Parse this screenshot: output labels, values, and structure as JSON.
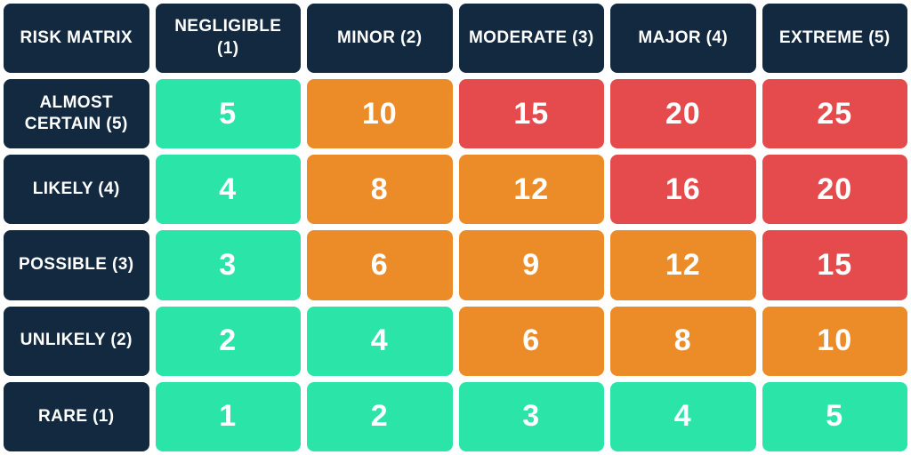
{
  "title": "RISK MATRIX",
  "matrix": {
    "corner_label": "RISK MATRIX",
    "column_headers": [
      "NEGLIGIBLE (1)",
      "MINOR (2)",
      "MODERATE (3)",
      "MAJOR (4)",
      "EXTREME (5)"
    ],
    "rows": [
      {
        "label": "ALMOST CERTAIN (5)",
        "cells": [
          {
            "value": "5",
            "level": "low"
          },
          {
            "value": "10",
            "level": "medium"
          },
          {
            "value": "15",
            "level": "high"
          },
          {
            "value": "20",
            "level": "high"
          },
          {
            "value": "25",
            "level": "high"
          }
        ]
      },
      {
        "label": "LIKELY (4)",
        "cells": [
          {
            "value": "4",
            "level": "low"
          },
          {
            "value": "8",
            "level": "medium"
          },
          {
            "value": "12",
            "level": "medium"
          },
          {
            "value": "16",
            "level": "high"
          },
          {
            "value": "20",
            "level": "high"
          }
        ]
      },
      {
        "label": "POSSIBLE (3)",
        "cells": [
          {
            "value": "3",
            "level": "low"
          },
          {
            "value": "6",
            "level": "medium"
          },
          {
            "value": "9",
            "level": "medium"
          },
          {
            "value": "12",
            "level": "medium"
          },
          {
            "value": "15",
            "level": "high"
          }
        ]
      },
      {
        "label": "UNLIKELY (2)",
        "cells": [
          {
            "value": "2",
            "level": "low"
          },
          {
            "value": "4",
            "level": "low"
          },
          {
            "value": "6",
            "level": "medium"
          },
          {
            "value": "8",
            "level": "medium"
          },
          {
            "value": "10",
            "level": "medium"
          }
        ]
      },
      {
        "label": "RARE (1)",
        "cells": [
          {
            "value": "1",
            "level": "low"
          },
          {
            "value": "2",
            "level": "low"
          },
          {
            "value": "3",
            "level": "low"
          },
          {
            "value": "4",
            "level": "low"
          },
          {
            "value": "5",
            "level": "low"
          }
        ]
      }
    ]
  },
  "colors": {
    "header_bg": "#12293F",
    "low": "#2BE4A8",
    "medium": "#EC8C28",
    "high": "#E54B4C",
    "text": "#FFFFFF",
    "page_background": "#FFFFFF"
  },
  "chart_data": {
    "type": "heatmap",
    "title": "RISK MATRIX",
    "columns": [
      "NEGLIGIBLE (1)",
      "MINOR (2)",
      "MODERATE (3)",
      "MAJOR (4)",
      "EXTREME (5)"
    ],
    "rows": [
      "ALMOST CERTAIN (5)",
      "LIKELY (4)",
      "POSSIBLE (3)",
      "UNLIKELY (2)",
      "RARE (1)"
    ],
    "values": [
      [
        5,
        10,
        15,
        20,
        25
      ],
      [
        4,
        8,
        12,
        16,
        20
      ],
      [
        3,
        6,
        9,
        12,
        15
      ],
      [
        2,
        4,
        6,
        8,
        10
      ],
      [
        1,
        2,
        3,
        4,
        5
      ]
    ],
    "cell_levels": [
      [
        "low",
        "medium",
        "high",
        "high",
        "high"
      ],
      [
        "low",
        "medium",
        "medium",
        "high",
        "high"
      ],
      [
        "low",
        "medium",
        "medium",
        "medium",
        "high"
      ],
      [
        "low",
        "low",
        "medium",
        "medium",
        "medium"
      ],
      [
        "low",
        "low",
        "low",
        "low",
        "low"
      ]
    ],
    "level_colors": {
      "low": "#2BE4A8",
      "medium": "#EC8C28",
      "high": "#E54B4C"
    },
    "legend_position": "none",
    "grid": false
  }
}
